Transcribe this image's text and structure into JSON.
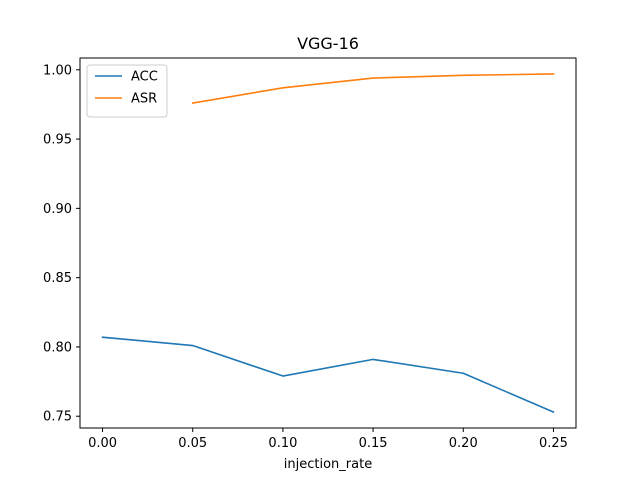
{
  "chart_data": {
    "type": "line",
    "title": "VGG-16",
    "xlabel": "injection_rate",
    "ylabel": "",
    "xlim": [
      -0.0125,
      0.2625
    ],
    "ylim": [
      0.7415,
      1.0085
    ],
    "xticks": [
      "0.00",
      "0.05",
      "0.10",
      "0.15",
      "0.20",
      "0.25"
    ],
    "xtick_values": [
      0.0,
      0.05,
      0.1,
      0.15,
      0.2,
      0.25
    ],
    "yticks": [
      "0.75",
      "0.80",
      "0.85",
      "0.90",
      "0.95",
      "1.00"
    ],
    "ytick_values": [
      0.75,
      0.8,
      0.85,
      0.9,
      0.95,
      1.0
    ],
    "grid": false,
    "legend_position": "upper-left",
    "series": [
      {
        "name": "ACC",
        "color": "#1f77b4",
        "x": [
          0.0,
          0.05,
          0.1,
          0.15,
          0.2,
          0.25
        ],
        "y": [
          0.807,
          0.801,
          0.779,
          0.791,
          0.781,
          0.753
        ]
      },
      {
        "name": "ASR",
        "color": "#ff7f0e",
        "x": [
          0.05,
          0.1,
          0.15,
          0.2,
          0.25
        ],
        "y": [
          0.976,
          0.987,
          0.994,
          0.996,
          0.997
        ]
      }
    ]
  }
}
